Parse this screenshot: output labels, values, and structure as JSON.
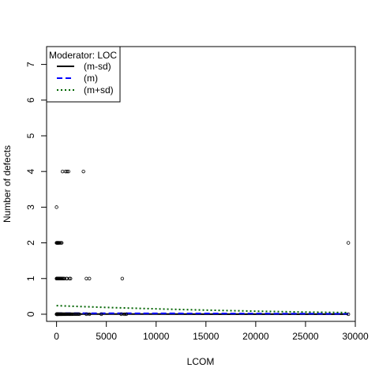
{
  "chart_data": {
    "type": "scatter",
    "xlabel": "LCOM",
    "ylabel": "Number of defects",
    "xlim": [
      -1000,
      30000
    ],
    "ylim": [
      -0.2,
      7.5
    ],
    "x_ticks": [
      "0",
      "5000",
      "10000",
      "15000",
      "20000",
      "25000",
      "30000"
    ],
    "x_tick_values": [
      0,
      5000,
      10000,
      15000,
      20000,
      25000,
      30000
    ],
    "y_ticks": [
      "0",
      "1",
      "2",
      "3",
      "4",
      "5",
      "6",
      "7"
    ],
    "y_tick_values": [
      0,
      1,
      2,
      3,
      4,
      5,
      6,
      7
    ],
    "grid": false,
    "legend": {
      "title": "Moderator: LOC",
      "placement": "top-left",
      "entries": [
        {
          "label": "(m-sd)",
          "color": "#000000",
          "style": "solid"
        },
        {
          "label": "(m)",
          "color": "#0000FF",
          "style": "dashed"
        },
        {
          "label": "(m+sd)",
          "color": "#006400",
          "style": "dotted"
        }
      ]
    },
    "points": [
      [
        0,
        0
      ],
      [
        10,
        0
      ],
      [
        20,
        0
      ],
      [
        35,
        0
      ],
      [
        50,
        0
      ],
      [
        70,
        0
      ],
      [
        90,
        0
      ],
      [
        110,
        0
      ],
      [
        130,
        0
      ],
      [
        150,
        0
      ],
      [
        180,
        0
      ],
      [
        210,
        0
      ],
      [
        250,
        0
      ],
      [
        300,
        0
      ],
      [
        350,
        0
      ],
      [
        400,
        0
      ],
      [
        450,
        0
      ],
      [
        500,
        0
      ],
      [
        560,
        0
      ],
      [
        620,
        0
      ],
      [
        700,
        0
      ],
      [
        780,
        0
      ],
      [
        860,
        0
      ],
      [
        950,
        0
      ],
      [
        1050,
        0
      ],
      [
        1150,
        0
      ],
      [
        1250,
        0
      ],
      [
        1350,
        0
      ],
      [
        1450,
        0
      ],
      [
        1550,
        0
      ],
      [
        1700,
        0
      ],
      [
        1850,
        0
      ],
      [
        2000,
        0
      ],
      [
        2150,
        0
      ],
      [
        2300,
        0
      ],
      [
        3000,
        0
      ],
      [
        3300,
        0
      ],
      [
        4500,
        0
      ],
      [
        6500,
        0
      ],
      [
        6800,
        0
      ],
      [
        7000,
        0
      ],
      [
        29300,
        0
      ],
      [
        0,
        1
      ],
      [
        20,
        1
      ],
      [
        40,
        1
      ],
      [
        60,
        1
      ],
      [
        80,
        1
      ],
      [
        100,
        1
      ],
      [
        130,
        1
      ],
      [
        160,
        1
      ],
      [
        200,
        1
      ],
      [
        240,
        1
      ],
      [
        280,
        1
      ],
      [
        330,
        1
      ],
      [
        380,
        1
      ],
      [
        430,
        1
      ],
      [
        480,
        1
      ],
      [
        550,
        1
      ],
      [
        620,
        1
      ],
      [
        700,
        1
      ],
      [
        800,
        1
      ],
      [
        1000,
        1
      ],
      [
        1050,
        1
      ],
      [
        1300,
        1
      ],
      [
        1400,
        1
      ],
      [
        3000,
        1
      ],
      [
        3300,
        1
      ],
      [
        6600,
        1
      ],
      [
        0,
        2
      ],
      [
        30,
        2
      ],
      [
        60,
        2
      ],
      [
        90,
        2
      ],
      [
        120,
        2
      ],
      [
        150,
        2
      ],
      [
        190,
        2
      ],
      [
        230,
        2
      ],
      [
        270,
        2
      ],
      [
        350,
        2
      ],
      [
        440,
        2
      ],
      [
        520,
        2
      ],
      [
        29300,
        2
      ],
      [
        0,
        3
      ],
      [
        600,
        4
      ],
      [
        900,
        4
      ],
      [
        1050,
        4
      ],
      [
        1200,
        4
      ],
      [
        2700,
        4
      ]
    ],
    "series": [
      {
        "name": "(m-sd)",
        "color": "#000000",
        "style": "solid",
        "x": [
          0,
          5000,
          10000,
          15000,
          20000,
          25000,
          29300
        ],
        "y": [
          0.005,
          0.004,
          0.004,
          0.003,
          0.003,
          0.002,
          0.002
        ]
      },
      {
        "name": "(m)",
        "color": "#0000FF",
        "style": "dashed",
        "x": [
          0,
          5000,
          10000,
          15000,
          20000,
          25000,
          29300
        ],
        "y": [
          0.03,
          0.027,
          0.024,
          0.021,
          0.018,
          0.015,
          0.013
        ]
      },
      {
        "name": "(m+sd)",
        "color": "#006400",
        "style": "dotted",
        "x": [
          0,
          5000,
          10000,
          15000,
          20000,
          25000,
          29300
        ],
        "y": [
          0.24,
          0.19,
          0.15,
          0.115,
          0.085,
          0.06,
          0.045
        ]
      }
    ]
  }
}
